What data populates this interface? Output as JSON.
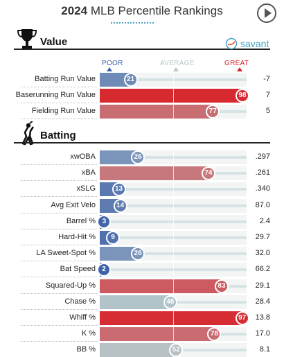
{
  "header": {
    "year": "2024",
    "title_rest": "MLB Percentile Rankings"
  },
  "legend": {
    "poor": {
      "label": "POOR",
      "color": "#3a5ea8"
    },
    "average": {
      "label": "AVERAGE",
      "color": "#b6c7c9"
    },
    "great": {
      "label": "GREAT",
      "color": "#d8222a"
    }
  },
  "logo": {
    "text": "savant"
  },
  "chart_data": {
    "type": "bar",
    "xlim": [
      0,
      100
    ],
    "sections": [
      {
        "title": "Value",
        "icon": "trophy-icon",
        "rows": [
          {
            "label": "Batting Run Value",
            "percentile": 21,
            "value": "-7"
          },
          {
            "label": "Baserunning Run Value",
            "percentile": 98,
            "value": "7"
          },
          {
            "label": "Fielding Run Value",
            "percentile": 77,
            "value": "5"
          }
        ]
      },
      {
        "title": "Batting",
        "icon": "batter-icon",
        "rows": [
          {
            "label": "xwOBA",
            "percentile": 26,
            "value": ".297"
          },
          {
            "label": "xBA",
            "percentile": 74,
            "value": ".261"
          },
          {
            "label": "xSLG",
            "percentile": 13,
            "value": ".340"
          },
          {
            "label": "Avg Exit Velo",
            "percentile": 14,
            "value": "87.0"
          },
          {
            "label": "Barrel %",
            "percentile": 3,
            "value": "2.4"
          },
          {
            "label": "Hard-Hit %",
            "percentile": 9,
            "value": "29.7"
          },
          {
            "label": "LA Sweet-Spot %",
            "percentile": 26,
            "value": "32.0"
          },
          {
            "label": "Bat Speed",
            "percentile": 2,
            "value": "66.2"
          },
          {
            "label": "Squared-Up %",
            "percentile": 83,
            "value": "29.1"
          },
          {
            "label": "Chase %",
            "percentile": 48,
            "value": "28.4"
          },
          {
            "label": "Whiff %",
            "percentile": 97,
            "value": "13.8"
          },
          {
            "label": "K %",
            "percentile": 78,
            "value": "17.0"
          },
          {
            "label": "BB %",
            "percentile": 52,
            "value": "8.1"
          }
        ]
      }
    ]
  }
}
